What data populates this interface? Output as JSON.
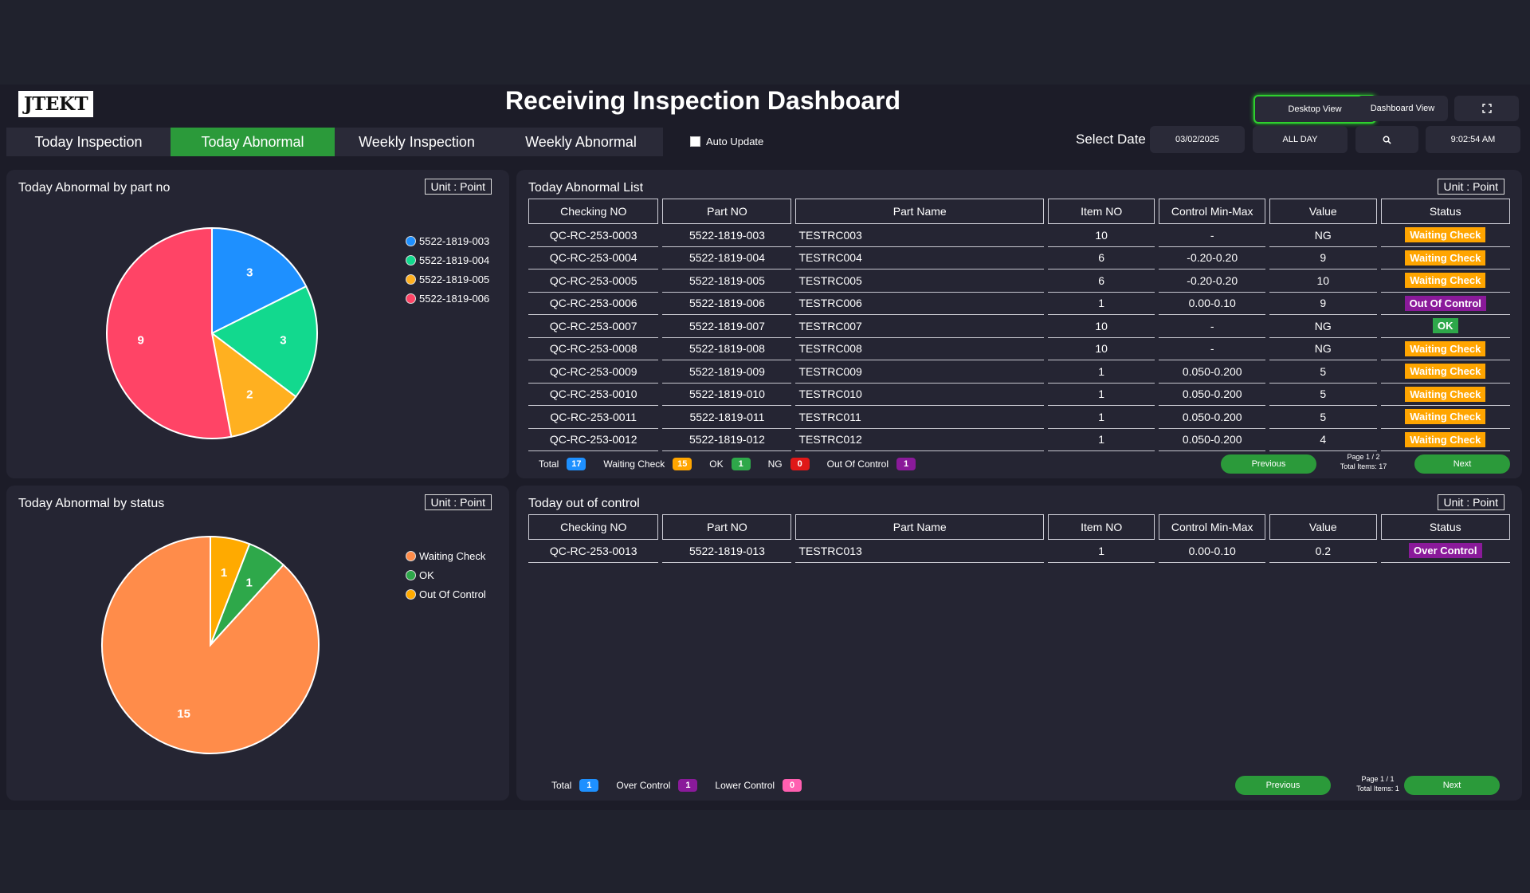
{
  "header": {
    "logo_text": "JTEKT",
    "title": "Receiving Inspection Dashboard",
    "desktop_view_label": "Desktop View",
    "dashboard_view_label": "Dashboard View",
    "select_date_label": "Select Date",
    "date_value": "03/02/2025",
    "period_value": "ALL DAY",
    "time_value": "9:02:54 AM"
  },
  "tabs": [
    {
      "label": "Today Inspection"
    },
    {
      "label": "Today Abnormal"
    },
    {
      "label": "Weekly Inspection"
    },
    {
      "label": "Weekly Abnormal"
    }
  ],
  "auto_update_label": "Auto Update",
  "pie_part": {
    "title": "Today Abnormal by part no",
    "unit_label": "Unit : Point",
    "chart_data": {
      "type": "pie",
      "labels": [
        "5522-1819-003",
        "5522-1819-004",
        "5522-1819-005",
        "5522-1819-006"
      ],
      "values": [
        3,
        3,
        2,
        9
      ],
      "colors": [
        "#1e90ff",
        "#12d98e",
        "#ffb020",
        "#ff4466"
      ]
    }
  },
  "pie_status": {
    "title": "Today Abnormal by status",
    "unit_label": "Unit : Point",
    "chart_data": {
      "type": "pie",
      "labels": [
        "Waiting Check",
        "OK",
        "Out Of Control"
      ],
      "values": [
        15,
        1,
        1
      ],
      "colors": [
        "#ff8c4a",
        "#2ea84a",
        "#ffaa00"
      ]
    }
  },
  "abnormal_list": {
    "title": "Today Abnormal List",
    "unit_label": "Unit : Point",
    "columns": [
      "Checking NO",
      "Part NO",
      "Part Name",
      "Item NO",
      "Control Min-Max",
      "Value",
      "Status"
    ],
    "rows": [
      [
        "QC-RC-253-0003",
        "5522-1819-003",
        "TESTRC003",
        "10",
        "-",
        "NG",
        "Waiting Check"
      ],
      [
        "QC-RC-253-0004",
        "5522-1819-004",
        "TESTRC004",
        "6",
        "-0.20-0.20",
        "9",
        "Waiting Check"
      ],
      [
        "QC-RC-253-0005",
        "5522-1819-005",
        "TESTRC005",
        "6",
        "-0.20-0.20",
        "10",
        "Waiting Check"
      ],
      [
        "QC-RC-253-0006",
        "5522-1819-006",
        "TESTRC006",
        "1",
        "0.00-0.10",
        "9",
        "Out Of Control"
      ],
      [
        "QC-RC-253-0007",
        "5522-1819-007",
        "TESTRC007",
        "10",
        "-",
        "NG",
        "OK"
      ],
      [
        "QC-RC-253-0008",
        "5522-1819-008",
        "TESTRC008",
        "10",
        "-",
        "NG",
        "Waiting Check"
      ],
      [
        "QC-RC-253-0009",
        "5522-1819-009",
        "TESTRC009",
        "1",
        "0.050-0.200",
        "5",
        "Waiting Check"
      ],
      [
        "QC-RC-253-0010",
        "5522-1819-010",
        "TESTRC010",
        "1",
        "0.050-0.200",
        "5",
        "Waiting Check"
      ],
      [
        "QC-RC-253-0011",
        "5522-1819-011",
        "TESTRC011",
        "1",
        "0.050-0.200",
        "5",
        "Waiting Check"
      ],
      [
        "QC-RC-253-0012",
        "5522-1819-012",
        "TESTRC012",
        "1",
        "0.050-0.200",
        "4",
        "Waiting Check"
      ]
    ],
    "summary": [
      {
        "label": "Total",
        "count": "17",
        "color": "#1e90ff"
      },
      {
        "label": "Waiting Check",
        "count": "15",
        "color": "#ffa500"
      },
      {
        "label": "OK",
        "count": "1",
        "color": "#2ea84a"
      },
      {
        "label": "NG",
        "count": "0",
        "color": "#e01818"
      },
      {
        "label": "Out Of Control",
        "count": "1",
        "color": "#8a1a9a"
      }
    ],
    "previous_label": "Previous",
    "next_label": "Next",
    "page_text": "Page 1 / 2",
    "total_items_text": "Total Items: 17"
  },
  "out_of_control": {
    "title": "Today out of control",
    "unit_label": "Unit : Point",
    "columns": [
      "Checking NO",
      "Part NO",
      "Part Name",
      "Item NO",
      "Control Min-Max",
      "Value",
      "Status"
    ],
    "rows": [
      [
        "QC-RC-253-0013",
        "5522-1819-013",
        "TESTRC013",
        "1",
        "0.00-0.10",
        "0.2",
        "Over Control"
      ]
    ],
    "summary": [
      {
        "label": "Total",
        "count": "1",
        "color": "#1e90ff"
      },
      {
        "label": "Over Control",
        "count": "1",
        "color": "#8a1a9a"
      },
      {
        "label": "Lower Control",
        "count": "0",
        "color": "#ff5fb0"
      }
    ],
    "previous_label": "Previous",
    "next_label": "Next",
    "page_text": "Page 1 / 1",
    "total_items_text": "Total Items: 1"
  },
  "status_colors": {
    "Waiting Check": "#ffa500",
    "Out Of Control": "#8a1a9a",
    "Over Control": "#8a1a9a",
    "OK": "#2ea84a"
  }
}
